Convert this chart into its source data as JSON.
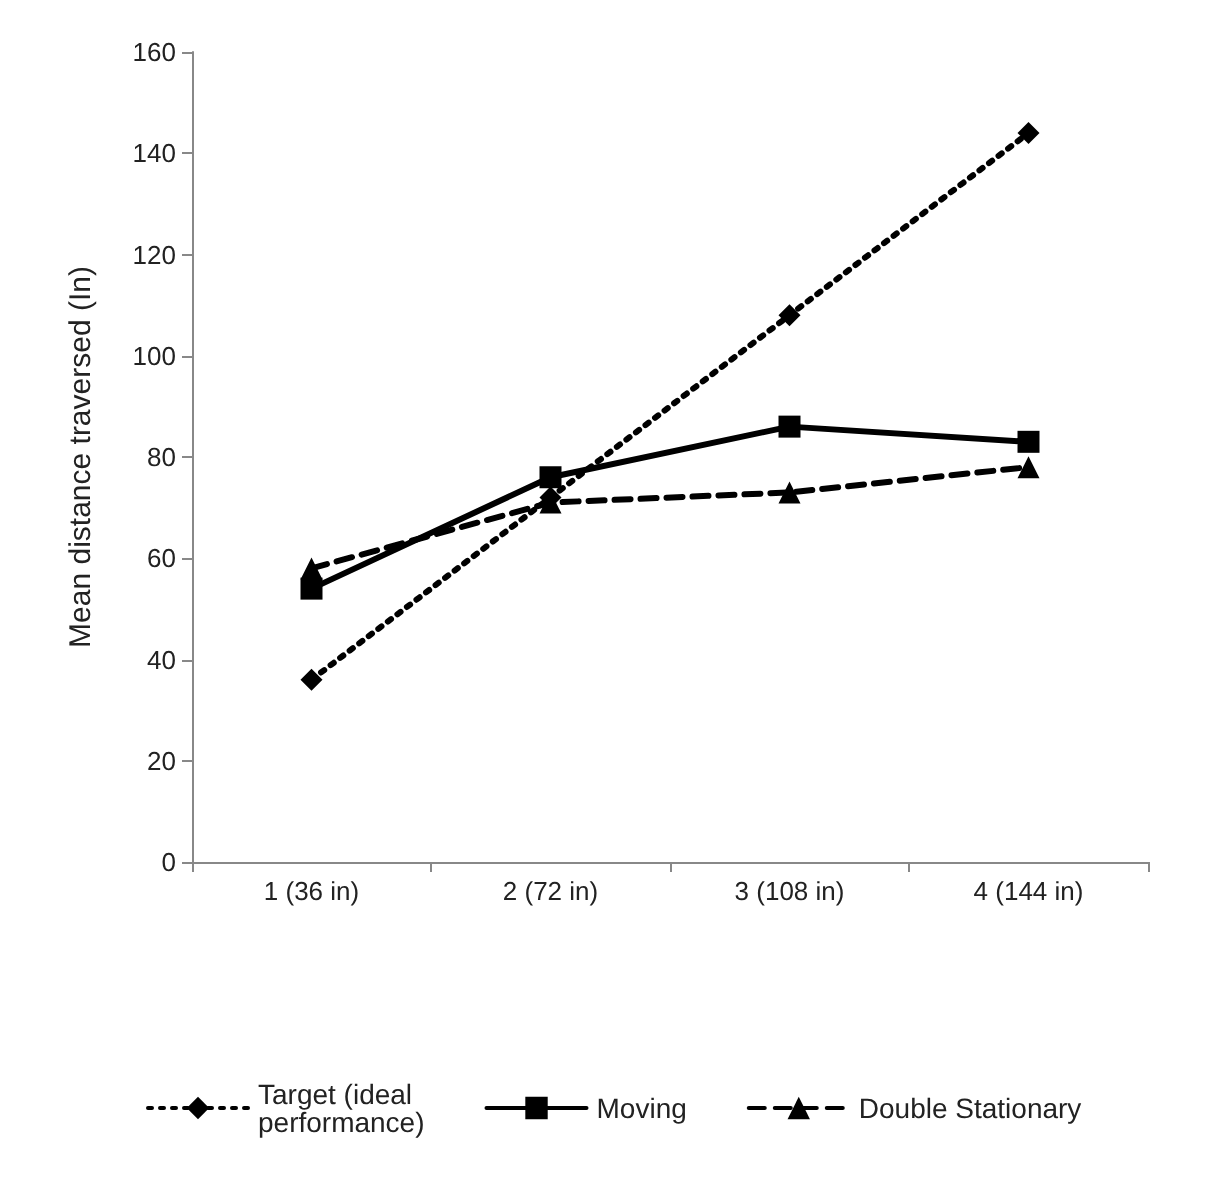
{
  "chart_data": {
    "type": "line",
    "ylabel": "Mean distance traversed (In)",
    "categories": [
      "1 (36 in)",
      "2 (72 in)",
      "3 (108 in)",
      "4 (144 in)"
    ],
    "series": [
      {
        "name": "Target (ideal performance)",
        "color": "#000000",
        "values": [
          36,
          72,
          108,
          144
        ],
        "marker": "diamond",
        "line_style": "dotted"
      },
      {
        "name": "Moving",
        "color": "#000000",
        "values": [
          54,
          76,
          86,
          83
        ],
        "marker": "square",
        "line_style": "solid"
      },
      {
        "name": "Double Stationary",
        "color": "#000000",
        "values": [
          58,
          71,
          73,
          78
        ],
        "marker": "triangle",
        "line_style": "dashed"
      }
    ],
    "ylim": [
      0,
      160
    ],
    "yticks": [
      0,
      20,
      40,
      60,
      80,
      100,
      120,
      140,
      160
    ],
    "grid": false,
    "legend": "bottom"
  }
}
